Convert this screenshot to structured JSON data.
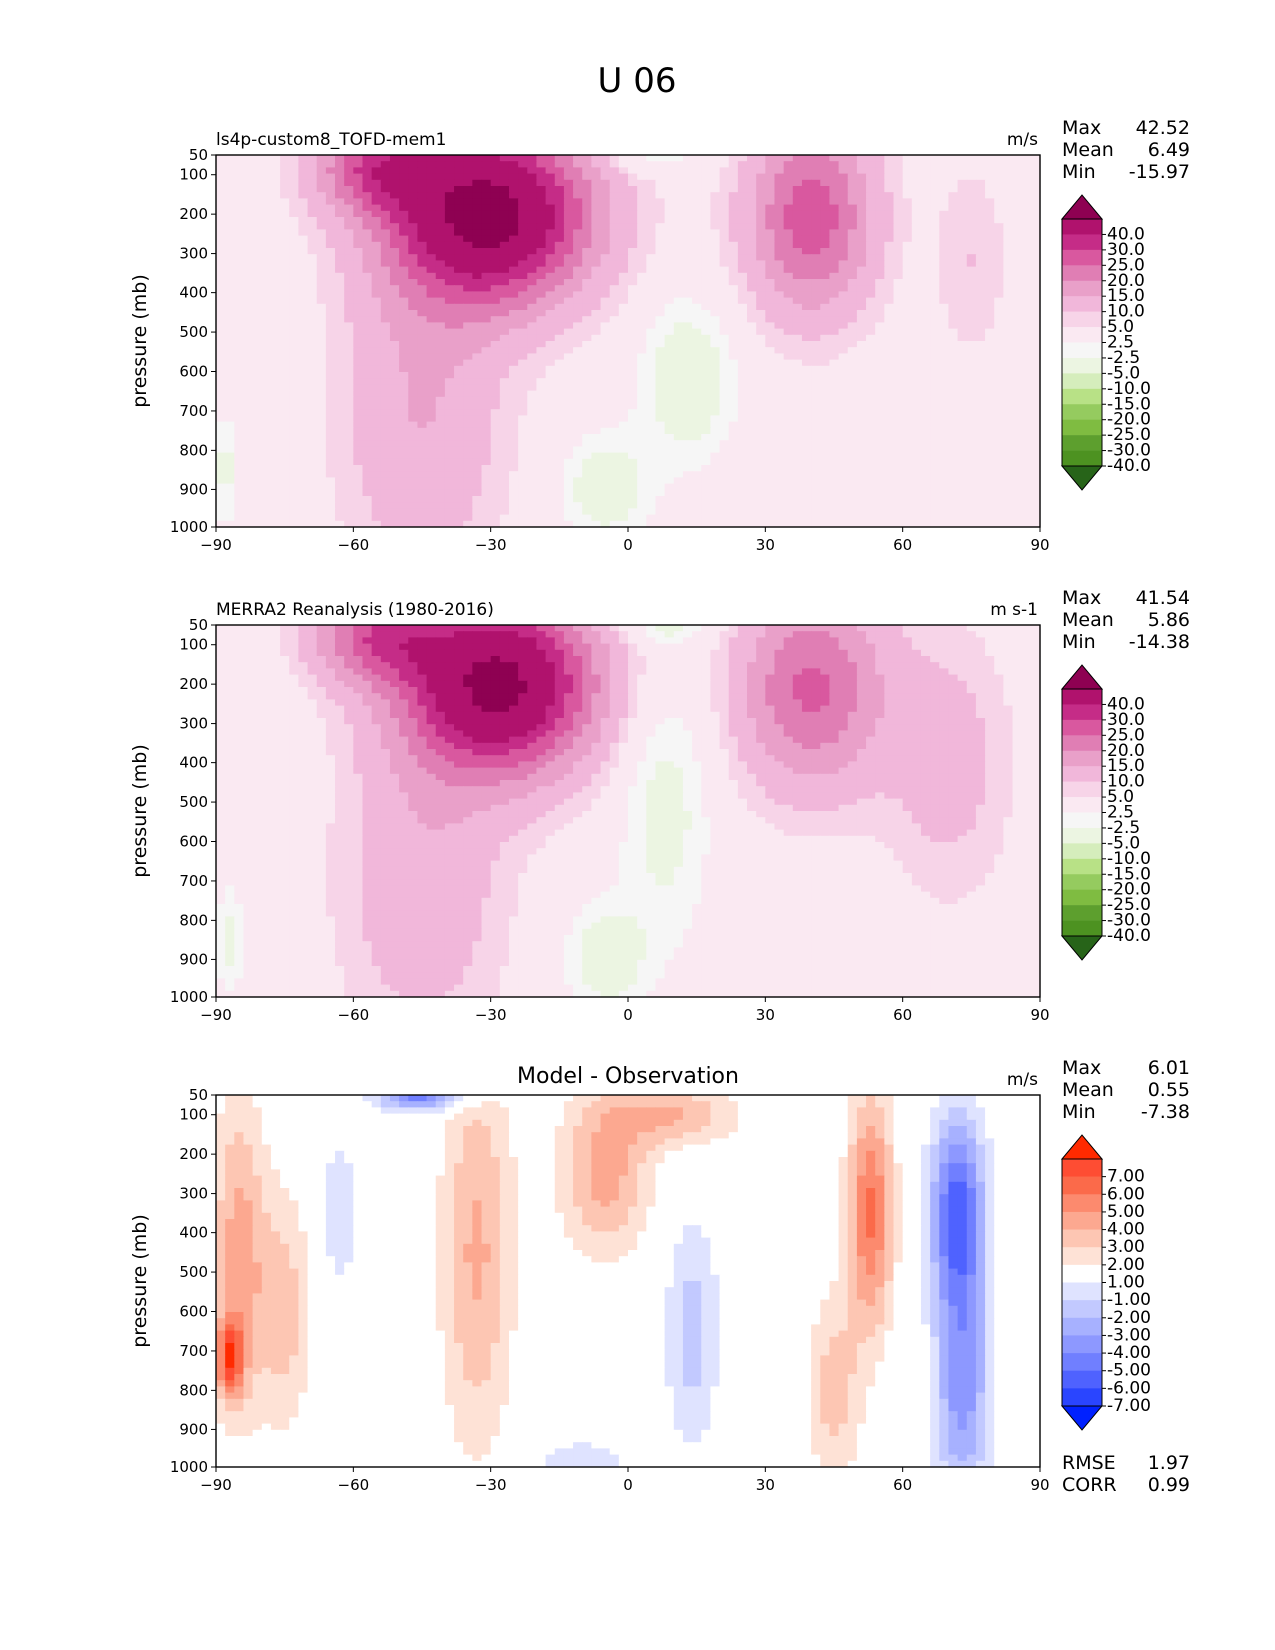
{
  "figure_title": "U 06",
  "chart_data": [
    {
      "type": "contour",
      "title": "ls4p-custom8_TOFD-mem1",
      "units": "m/s",
      "xlabel": "",
      "ylabel": "pressure (mb)",
      "xlim": [
        -90,
        90
      ],
      "xticks": [
        "−90",
        "−60",
        "−30",
        "0",
        "30",
        "60",
        "90"
      ],
      "yticks": [
        "50",
        "100",
        "200",
        "300",
        "400",
        "500",
        "600",
        "700",
        "800",
        "900",
        "1000"
      ],
      "stats": {
        "max_label": "Max",
        "max": "42.52",
        "mean_label": "Mean",
        "mean": "6.49",
        "min_label": "Min",
        "min": "-15.97"
      },
      "colorbar_levels": [
        "40.0",
        "30.0",
        "25.0",
        "20.0",
        "15.0",
        "10.0",
        "5.0",
        "2.5",
        "-2.5",
        "-5.0",
        "-10.0",
        "-15.0",
        "-20.0",
        "-25.0",
        "-30.0",
        "-40.0"
      ],
      "colorbar_colors": [
        "#8e0152",
        "#b0126d",
        "#c52c87",
        "#d9589f",
        "#e07eb4",
        "#e9a0c9",
        "#f1b7da",
        "#f7d4e8",
        "#fae9f2",
        "#f6f6f6",
        "#ecf5e2",
        "#d5edbc",
        "#b8e186",
        "#95cb5f",
        "#7fbc41",
        "#5d9f2e",
        "#4d9221",
        "#276419"
      ],
      "zonal_jets": [
        {
          "name": "southern-subtropical-jet",
          "center_lat": -30,
          "center_p": 200,
          "peak": 42.5
        },
        {
          "name": "northern-subtropical-jet",
          "center_lat": 40,
          "center_p": 200,
          "peak": 22
        }
      ]
    },
    {
      "type": "contour",
      "title": "MERRA2 Reanalysis (1980-2016)",
      "units": "m s-1",
      "xlabel": "",
      "ylabel": "pressure (mb)",
      "xlim": [
        -90,
        90
      ],
      "xticks": [
        "−90",
        "−60",
        "−30",
        "0",
        "30",
        "60",
        "90"
      ],
      "yticks": [
        "50",
        "100",
        "200",
        "300",
        "400",
        "500",
        "600",
        "700",
        "800",
        "900",
        "1000"
      ],
      "stats": {
        "max_label": "Max",
        "max": "41.54",
        "mean_label": "Mean",
        "mean": "5.86",
        "min_label": "Min",
        "min": "-14.38"
      },
      "colorbar_levels": [
        "40.0",
        "30.0",
        "25.0",
        "20.0",
        "15.0",
        "10.0",
        "5.0",
        "2.5",
        "-2.5",
        "-5.0",
        "-10.0",
        "-15.0",
        "-20.0",
        "-25.0",
        "-30.0",
        "-40.0"
      ],
      "colorbar_colors": [
        "#8e0152",
        "#b0126d",
        "#c52c87",
        "#d9589f",
        "#e07eb4",
        "#e9a0c9",
        "#f1b7da",
        "#f7d4e8",
        "#fae9f2",
        "#f6f6f6",
        "#ecf5e2",
        "#d5edbc",
        "#b8e186",
        "#95cb5f",
        "#7fbc41",
        "#5d9f2e",
        "#4d9221",
        "#276419"
      ],
      "zonal_jets": [
        {
          "name": "southern-subtropical-jet",
          "center_lat": -30,
          "center_p": 200,
          "peak": 41.5
        },
        {
          "name": "northern-subtropical-jet",
          "center_lat": 40,
          "center_p": 200,
          "peak": 21
        }
      ]
    },
    {
      "type": "contour",
      "title": "Model - Observation",
      "units": "m/s",
      "xlabel": "",
      "ylabel": "pressure (mb)",
      "xlim": [
        -90,
        90
      ],
      "xticks": [
        "−90",
        "−60",
        "−30",
        "0",
        "30",
        "60",
        "90"
      ],
      "yticks": [
        "50",
        "100",
        "200",
        "300",
        "400",
        "500",
        "600",
        "700",
        "800",
        "900",
        "1000"
      ],
      "stats": {
        "max_label": "Max",
        "max": "6.01",
        "mean_label": "Mean",
        "mean": "0.55",
        "min_label": "Min",
        "min": "-7.38"
      },
      "colorbar_levels": [
        "7.00",
        "6.00",
        "5.00",
        "4.00",
        "3.00",
        "2.00",
        "1.00",
        "-1.00",
        "-2.00",
        "-3.00",
        "-4.00",
        "-5.00",
        "-6.00",
        "-7.00"
      ],
      "colorbar_colors": [
        "#ff2a00",
        "#fe4d33",
        "#fb6a4a",
        "#fc8a6e",
        "#fca890",
        "#fdc6b3",
        "#fee2d6",
        "#ffffff",
        "#dfe3ff",
        "#c2c9ff",
        "#a7b1ff",
        "#8d98ff",
        "#707fff",
        "#4f62ff",
        "#2a45ff",
        "#0021ff"
      ],
      "metrics": {
        "rmse_label": "RMSE",
        "rmse": "1.97",
        "corr_label": "CORR",
        "corr": "0.99"
      }
    }
  ]
}
